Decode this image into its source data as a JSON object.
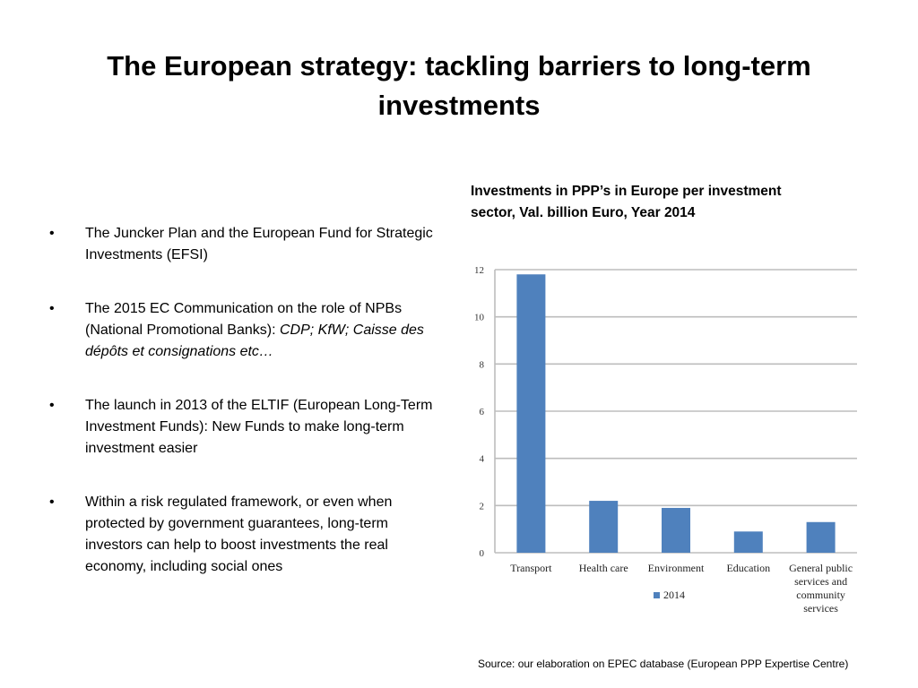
{
  "slide": {
    "title": "The European strategy: tackling barriers to long-term investments",
    "bullets": [
      {
        "dot": "•",
        "text": "The Juncker Plan and the European Fund for Strategic Investments (EFSI)",
        "italic": ""
      },
      {
        "dot": "•",
        "text": "The 2015 EC Communication on the role of NPBs (National Promotional Banks): ",
        "italic": "CDP; KfW; Caisse des dépôts et consignations etc…"
      },
      {
        "dot": "•",
        "text": "The launch in 2013  of the ELTIF (European Long-Term Investment Funds): New Funds to make long-term investment easier",
        "italic": ""
      },
      {
        "dot": "•",
        "text": "Within a risk regulated framework, or even when protected by government guarantees, long-term investors can help to boost investments the real economy,  including social ones",
        "italic": ""
      }
    ],
    "source": "Source: our elaboration on EPEC database (European PPP Expertise Centre)"
  },
  "chart_data": {
    "type": "bar",
    "title": "Investments in PPP’s in Europe per investment sector, Val. billion Euro, Year 2014",
    "categories": [
      "Transport",
      "Health care",
      "Environment",
      "Education",
      "General public services and community services"
    ],
    "category_lines": [
      [
        "Transport"
      ],
      [
        "Health care"
      ],
      [
        "Environment"
      ],
      [
        "Education"
      ],
      [
        "General public",
        "services and",
        "community",
        "services"
      ]
    ],
    "series": [
      {
        "name": "2014",
        "values": [
          11.8,
          2.2,
          1.9,
          0.9,
          1.3
        ],
        "color": "#4F81BD"
      }
    ],
    "ylim": [
      0,
      12
    ],
    "yticks": [
      0,
      2,
      4,
      6,
      8,
      10,
      12
    ],
    "grid": true,
    "legend": "bottom",
    "xlabel": "",
    "ylabel": ""
  }
}
